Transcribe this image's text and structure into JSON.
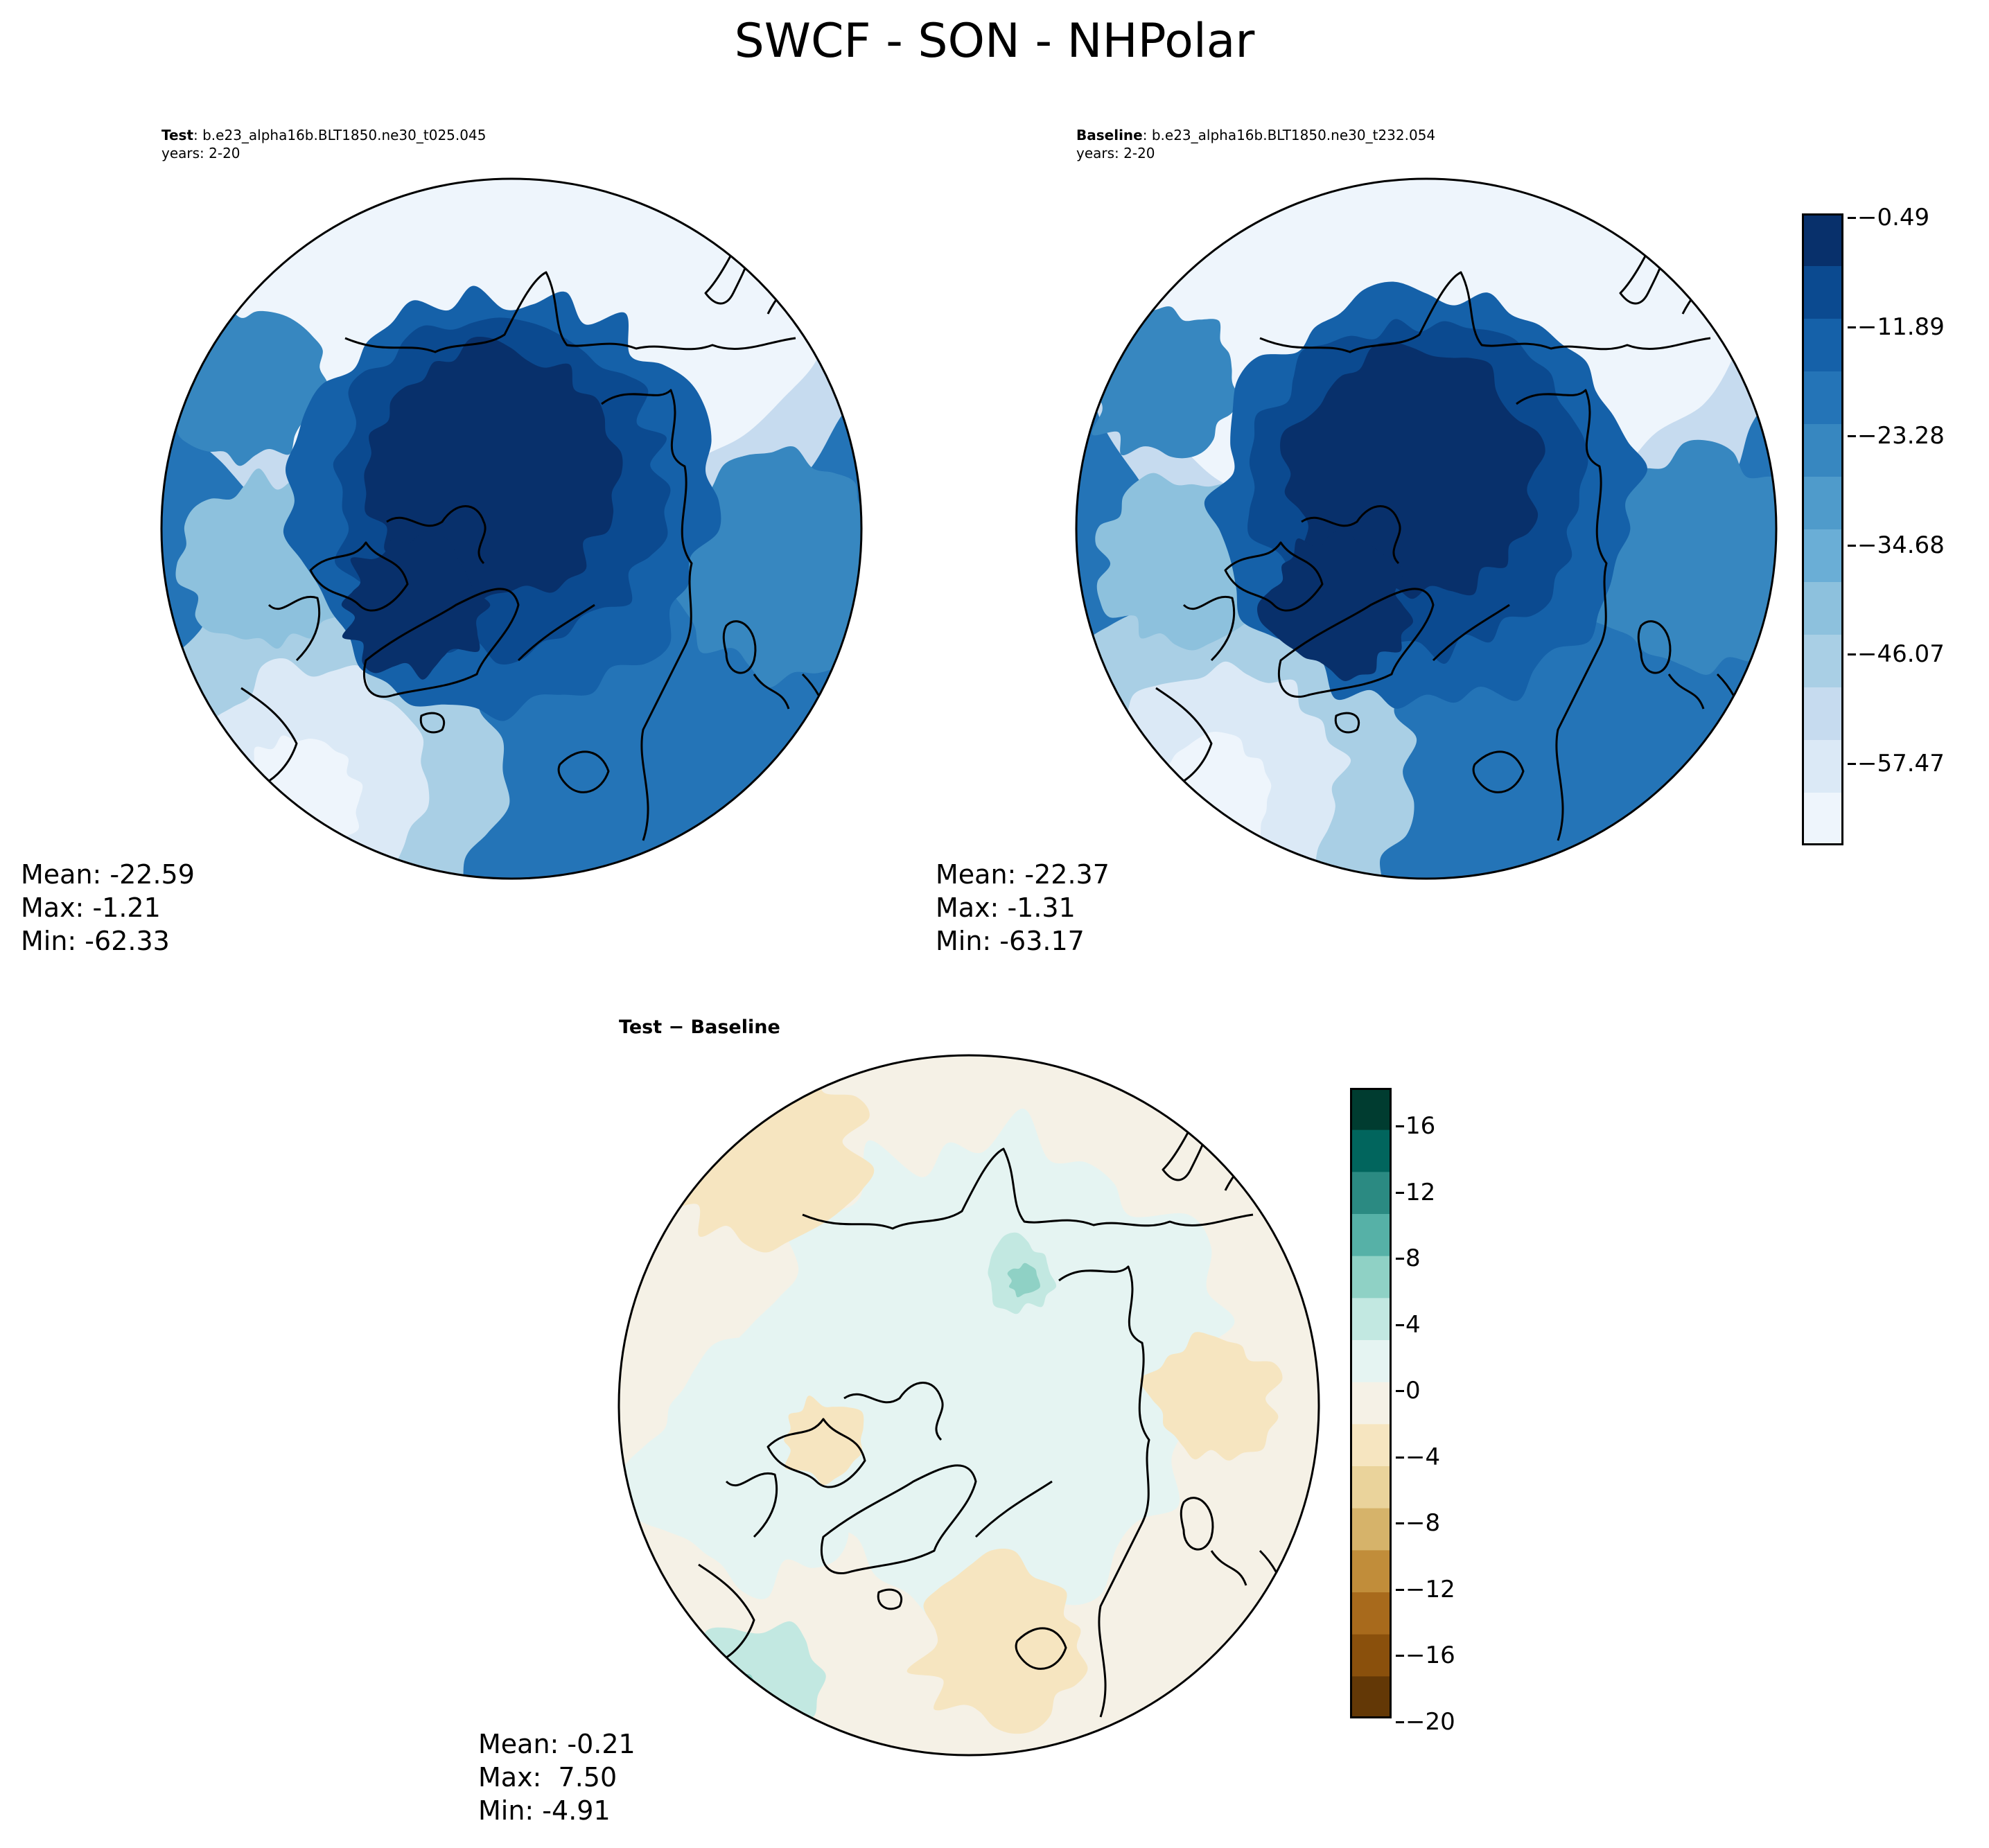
{
  "title": "SWCF - SON - NHPolar",
  "panels": {
    "test": {
      "label": "Test",
      "case": ": b.e23_alpha16b.BLT1850.ne30_t025.045",
      "years": "years: 2-20",
      "stats": {
        "mean": "Mean: -22.59",
        "max": "Max: -1.21",
        "min": "Min: -62.33"
      }
    },
    "baseline": {
      "label": "Baseline",
      "case": ": b.e23_alpha16b.BLT1850.ne30_t232.054",
      "years": "years: 2-20",
      "stats": {
        "mean": "Mean: -22.37",
        "max": "Max: -1.31",
        "min": "Min: -63.17"
      }
    },
    "diff": {
      "label": "Test − Baseline",
      "stats": {
        "mean": "Mean: -0.21",
        "max": "Max:  7.50",
        "min": "Min: -4.91"
      }
    }
  },
  "colorbars": {
    "main": {
      "ticks": [
        "−0.49",
        "−11.89",
        "−23.28",
        "−34.68",
        "−46.07",
        "−57.47"
      ],
      "colors": [
        "#08306b",
        "#0b4a90",
        "#1561a9",
        "#2474b7",
        "#3787c0",
        "#4f9bcb",
        "#6aaed6",
        "#8dc1dd",
        "#a9cfe5",
        "#c6dbef",
        "#dbe9f6",
        "#eef5fc"
      ]
    },
    "diff": {
      "ticks": [
        "16",
        "12",
        "8",
        "4",
        "0",
        "−4",
        "−8",
        "−12",
        "−16",
        "−20"
      ],
      "colors": [
        "#003c30",
        "#01655d",
        "#2b8a82",
        "#56b1a7",
        "#8fd1c5",
        "#c2e8e1",
        "#e5f4f2",
        "#f5f1e6",
        "#f6e5c0",
        "#ead39b",
        "#d6b36a",
        "#c18d3a",
        "#a86a1c",
        "#8a500c",
        "#633806"
      ]
    }
  }
}
